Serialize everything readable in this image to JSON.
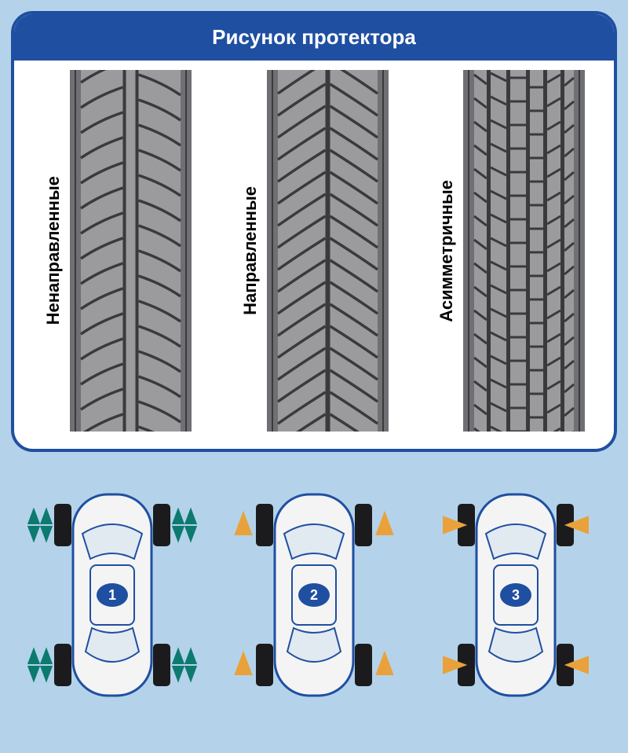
{
  "colors": {
    "page_bg": "#b4d3ea",
    "card_border": "#1f4fa1",
    "card_body_bg": "#ffffff",
    "header_bg": "#1f4fa1",
    "header_text": "#ffffff",
    "tire_light": "#9b9b9d",
    "tire_dark": "#707074",
    "tire_tread": "#3a3a3e",
    "car_body": "#f4f4f4",
    "car_window": "#e1e9f1",
    "car_outline": "#1f4fa1",
    "car_wheel": "#1b1b1d",
    "badge_bg": "#1f4fa1",
    "badge_text": "#ffffff",
    "arrow_green": "#0c7a6f",
    "arrow_orange": "#e9a23b"
  },
  "header": {
    "title": "Рисунок протектора"
  },
  "tires": [
    {
      "label": "Ненаправленные",
      "pattern": "nondirectional"
    },
    {
      "label": "Направленные",
      "pattern": "directional"
    },
    {
      "label": "Асимметричные",
      "pattern": "asymmetric"
    }
  ],
  "cars": [
    {
      "number": "1",
      "arrow_style": "green_pairs",
      "arrow_color_key": "arrow_green"
    },
    {
      "number": "2",
      "arrow_style": "orange_up",
      "arrow_color_key": "arrow_orange"
    },
    {
      "number": "3",
      "arrow_style": "orange_in",
      "arrow_color_key": "arrow_orange"
    }
  ]
}
